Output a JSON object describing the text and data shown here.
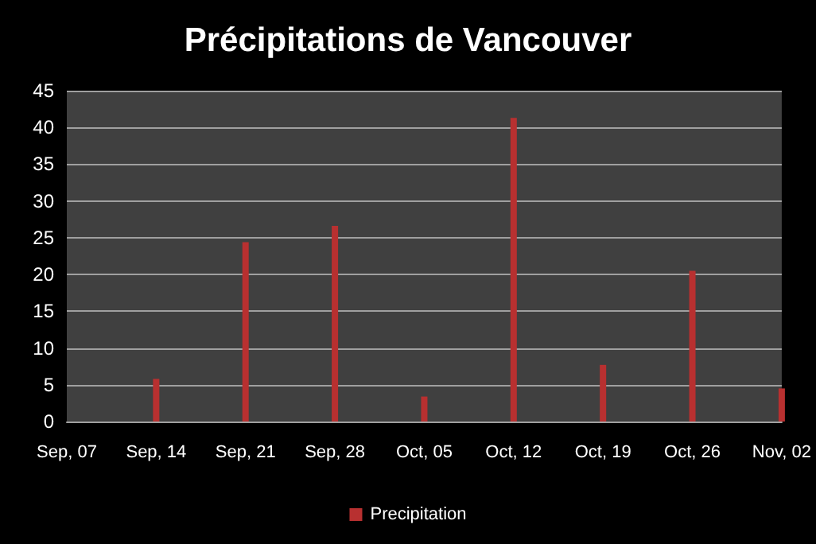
{
  "chart_data": {
    "type": "bar",
    "title": "Précipitations de Vancouver",
    "categories": [
      "Sep, 07",
      "Sep, 14",
      "Sep, 21",
      "Sep, 28",
      "Oct, 05",
      "Oct, 12",
      "Oct, 19",
      "Oct, 26",
      "Nov, 02"
    ],
    "series": [
      {
        "name": "Precipitation",
        "color": "#b83030",
        "values": [
          0,
          5.8,
          24.4,
          26.6,
          3.4,
          41.3,
          7.7,
          20.5,
          4.5
        ]
      }
    ],
    "ylim": [
      0,
      45
    ],
    "yticks": [
      0,
      5,
      10,
      15,
      20,
      25,
      30,
      35,
      40,
      45
    ],
    "grid": "y",
    "legend": "bottom"
  }
}
